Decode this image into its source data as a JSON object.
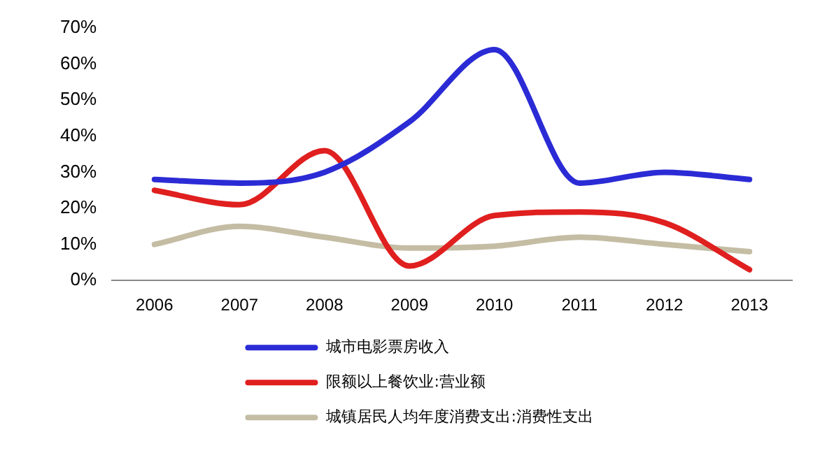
{
  "chart_data": {
    "type": "line",
    "categories": [
      "2006",
      "2007",
      "2008",
      "2009",
      "2010",
      "2011",
      "2012",
      "2013"
    ],
    "series": [
      {
        "name": "城市电影票房收入",
        "color": "#2b2bd6",
        "values": [
          28,
          27,
          30,
          44,
          64,
          27,
          30,
          28
        ]
      },
      {
        "name": "限额以上餐饮业:营业额",
        "color": "#e01f1f",
        "values": [
          25,
          21,
          36,
          4,
          18,
          19,
          16,
          3
        ]
      },
      {
        "name": "城镇居民人均年度消费支出:消费性支出",
        "color": "#c4bda4",
        "values": [
          10,
          15,
          12,
          9,
          9.5,
          12,
          10,
          8
        ]
      }
    ],
    "ylim": [
      0,
      70
    ],
    "yticks": [
      {
        "value": 0,
        "label": "0%"
      },
      {
        "value": 10,
        "label": "10%"
      },
      {
        "value": 20,
        "label": "20%"
      },
      {
        "value": 30,
        "label": "30%"
      },
      {
        "value": 40,
        "label": "40%"
      },
      {
        "value": 50,
        "label": "50%"
      },
      {
        "value": 60,
        "label": "60%"
      },
      {
        "value": 70,
        "label": "70%"
      }
    ],
    "grid": false,
    "legend": "bottom",
    "marker": "none",
    "line_style": "solid"
  }
}
